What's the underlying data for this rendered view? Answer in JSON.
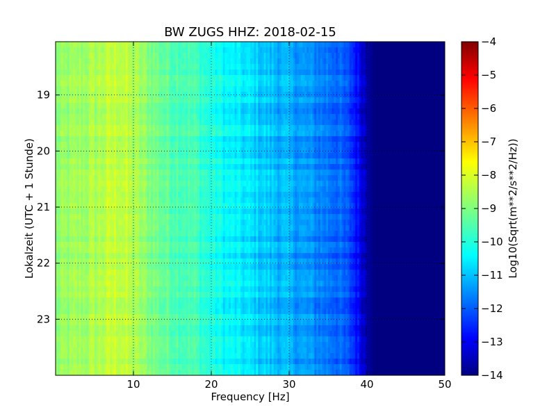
{
  "chart_data": {
    "type": "heatmap",
    "title": "BW ZUGS HHZ: 2018-02-15",
    "xlabel": "Frequency [Hz]",
    "ylabel": "Lokalzeit (UTC + 1 Stunde)",
    "xlim": [
      0,
      50
    ],
    "ylim": [
      24,
      18.05
    ],
    "x_ticks": [
      10,
      20,
      30,
      40,
      50
    ],
    "y_ticks": [
      19,
      20,
      21,
      22,
      23
    ],
    "grid": true,
    "colormap": "jet",
    "colorbar": {
      "label": "Log10(Sqrt(m**2/s**2/Hz))",
      "range": [
        -14,
        -4
      ],
      "ticks": [
        -4,
        -5,
        -6,
        -7,
        -8,
        -9,
        -10,
        -11,
        -12,
        -13,
        -14
      ]
    },
    "frequency_profile": {
      "frequency_hz": [
        0,
        5,
        8,
        10,
        14,
        18,
        20,
        22,
        25,
        28,
        30,
        33,
        36,
        38,
        39,
        40,
        41,
        45,
        50
      ],
      "log_amplitude": [
        -8.9,
        -8.6,
        -8.3,
        -8.6,
        -9.3,
        -9.6,
        -10.0,
        -10.3,
        -10.6,
        -10.9,
        -11.1,
        -11.4,
        -11.7,
        -12.2,
        -12.8,
        -13.6,
        -14.0,
        -14.0,
        -14.0
      ]
    }
  }
}
